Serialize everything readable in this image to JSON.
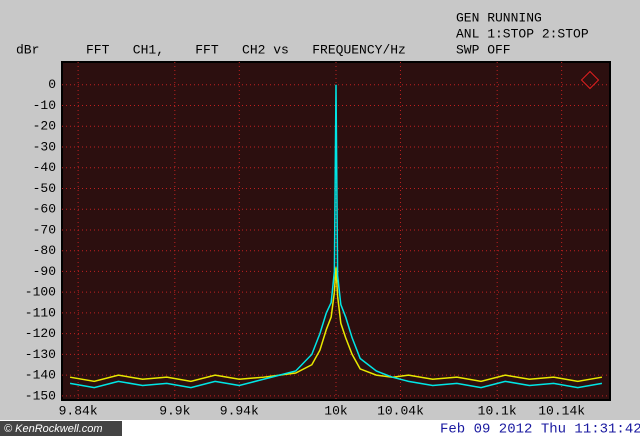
{
  "chart_data": {
    "type": "line",
    "title": "FFT   CH1,    FFT   CH2 vs   FREQUENCY/Hz",
    "y_label": "dBr",
    "status": [
      "GEN RUNNING",
      "ANL 1:STOP 2:STOP",
      "SWP OFF"
    ],
    "timestamp": "Feb 09 2012 Thu 11:31:42",
    "watermark": "© KenRockwell.com",
    "x": [
      9835,
      9850,
      9865,
      9880,
      9895,
      9910,
      9925,
      9940,
      9955,
      9965,
      9975,
      9985,
      9990,
      9994,
      9997,
      9999,
      10000,
      10001,
      10003,
      10006,
      10010,
      10015,
      10025,
      10035,
      10045,
      10060,
      10075,
      10090,
      10105,
      10120,
      10135,
      10150,
      10165
    ],
    "series": [
      {
        "name": "CH1",
        "color": "#e8e800",
        "values": [
          -141,
          -143,
          -140,
          -142,
          -141,
          -143,
          -140,
          -142,
          -141,
          -140,
          -139,
          -135,
          -128,
          -118,
          -112,
          -100,
          -88,
          -102,
          -115,
          -122,
          -130,
          -137,
          -140,
          -141,
          -140,
          -142,
          -141,
          -143,
          -140,
          -142,
          -141,
          -143,
          -141
        ]
      },
      {
        "name": "CH2",
        "color": "#00e5e5",
        "values": [
          -144,
          -146,
          -143,
          -145,
          -144,
          -146,
          -143,
          -145,
          -142,
          -140,
          -138,
          -130,
          -120,
          -110,
          -105,
          -90,
          0,
          -92,
          -106,
          -112,
          -122,
          -132,
          -138,
          -141,
          -143,
          -145,
          -144,
          -146,
          -143,
          -145,
          -144,
          -146,
          -144
        ]
      }
    ],
    "xlim": [
      9830,
      10170
    ],
    "xticks": [
      {
        "value": 9840,
        "label": "9.84k"
      },
      {
        "value": 9900,
        "label": "9.9k"
      },
      {
        "value": 9940,
        "label": "9.94k"
      },
      {
        "value": 10000,
        "label": "10k"
      },
      {
        "value": 10040,
        "label": "10.04k"
      },
      {
        "value": 10100,
        "label": "10.1k"
      },
      {
        "value": 10140,
        "label": "10.14k"
      }
    ],
    "ylim": [
      -152,
      11
    ],
    "yticks": [
      0,
      -10,
      -20,
      -30,
      -40,
      -50,
      -60,
      -70,
      -80,
      -90,
      -100,
      -110,
      -120,
      -130,
      -140,
      -150
    ],
    "grid": true
  }
}
